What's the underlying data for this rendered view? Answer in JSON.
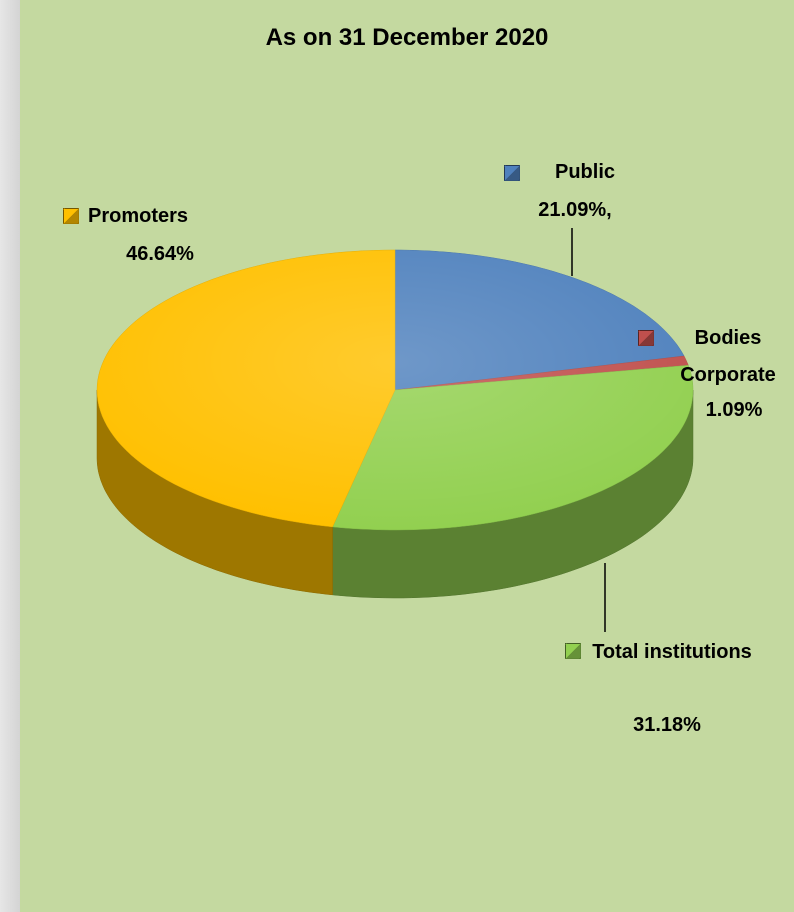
{
  "chart_data": {
    "type": "pie",
    "title": "As on 31 December 2020",
    "categories": [
      "Public",
      "Bodies Corporate",
      "Total institutions",
      "Promoters"
    ],
    "values": [
      21.09,
      1.09,
      31.18,
      46.64
    ],
    "value_labels": [
      "21.09%,",
      "1.09%",
      "31.18%",
      "46.64%"
    ],
    "colors": [
      "#4f81bd",
      "#c0504d",
      "#92d050",
      "#ffc000"
    ]
  }
}
